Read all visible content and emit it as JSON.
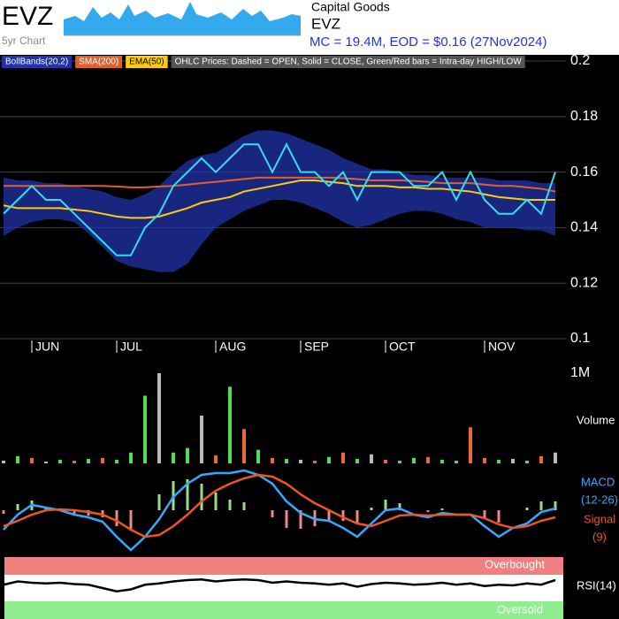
{
  "header": {
    "ticker": "EVZ",
    "thumb_label": "5yr Chart",
    "sector": "Capital Goods",
    "name": "EVZ",
    "summary": "MC = 19.4M, EOD = $0.16 (27Nov2024)"
  },
  "chart_data": [
    {
      "type": "line",
      "note": "OHLC Prices: Dashed = OPEN, Solid = CLOSE, Green/Red bars = Intra-day HIGH/LOW",
      "categories": [
        null,
        null,
        "JUN",
        null,
        null,
        null,
        null,
        null,
        "JUL",
        null,
        null,
        null,
        null,
        null,
        null,
        "AUG",
        null,
        null,
        null,
        null,
        null,
        "SEP",
        null,
        null,
        null,
        null,
        null,
        "OCT",
        null,
        null,
        null,
        null,
        null,
        null,
        "NOV",
        null,
        null,
        null,
        null,
        null
      ],
      "ylim": [
        0.1,
        0.2
      ],
      "yticks": [
        0.1,
        0.12,
        0.14,
        0.16,
        0.18,
        0.2
      ],
      "grid": true,
      "series": [
        {
          "name": "BollBands(20,2)",
          "type": "band",
          "color": "#2233aa",
          "upper": [
            0.158,
            0.157,
            0.157,
            0.156,
            0.156,
            0.155,
            0.154,
            0.153,
            0.151,
            0.15,
            0.152,
            0.155,
            0.16,
            0.164,
            0.166,
            0.167,
            0.17,
            0.173,
            0.175,
            0.175,
            0.174,
            0.172,
            0.17,
            0.168,
            0.165,
            0.163,
            0.161,
            0.161,
            0.16,
            0.159,
            0.159,
            0.158,
            0.158,
            0.158,
            0.158,
            0.157,
            0.157,
            0.157,
            0.156,
            0.156
          ],
          "lower": [
            0.137,
            0.14,
            0.142,
            0.143,
            0.143,
            0.142,
            0.138,
            0.133,
            0.128,
            0.126,
            0.125,
            0.124,
            0.124,
            0.127,
            0.134,
            0.14,
            0.143,
            0.146,
            0.148,
            0.15,
            0.15,
            0.149,
            0.147,
            0.145,
            0.142,
            0.14,
            0.141,
            0.143,
            0.145,
            0.146,
            0.146,
            0.145,
            0.143,
            0.142,
            0.14,
            0.14,
            0.14,
            0.139,
            0.139,
            0.137
          ]
        },
        {
          "name": "SMA(200)",
          "color": "#e0602a",
          "values": [
            0.155,
            0.155,
            0.155,
            0.155,
            0.155,
            0.155,
            0.155,
            0.155,
            0.1548,
            0.1545,
            0.1545,
            0.1548,
            0.155,
            0.1555,
            0.156,
            0.1565,
            0.157,
            0.1575,
            0.158,
            0.158,
            0.158,
            0.158,
            0.158,
            0.158,
            0.1578,
            0.1575,
            0.157,
            0.157,
            0.157,
            0.1568,
            0.1565,
            0.156,
            0.156,
            0.156,
            0.1555,
            0.155,
            0.155,
            0.1545,
            0.154,
            0.153
          ]
        },
        {
          "name": "EMA(50)",
          "color": "#ffcc00",
          "values": [
            0.148,
            0.147,
            0.147,
            0.147,
            0.147,
            0.1465,
            0.146,
            0.145,
            0.144,
            0.1435,
            0.1435,
            0.144,
            0.1455,
            0.147,
            0.149,
            0.15,
            0.151,
            0.153,
            0.154,
            0.155,
            0.156,
            0.157,
            0.157,
            0.1565,
            0.156,
            0.155,
            0.155,
            0.155,
            0.1545,
            0.1545,
            0.154,
            0.154,
            0.1535,
            0.153,
            0.152,
            0.151,
            0.1505,
            0.15,
            0.15,
            0.15
          ]
        },
        {
          "color": "#33ddee",
          "values": [
            0.145,
            0.15,
            0.155,
            0.15,
            0.15,
            0.145,
            0.14,
            0.135,
            0.13,
            0.13,
            0.14,
            0.145,
            0.155,
            0.16,
            0.165,
            0.16,
            0.165,
            0.17,
            0.17,
            0.16,
            0.17,
            0.16,
            0.16,
            0.155,
            0.16,
            0.15,
            0.16,
            0.16,
            0.16,
            0.155,
            0.155,
            0.16,
            0.15,
            0.16,
            0.15,
            0.145,
            0.145,
            0.15,
            0.145,
            0.16
          ]
        }
      ]
    },
    {
      "type": "bar",
      "ylabel": "Volume",
      "ylim": [
        0,
        1000000
      ],
      "yticks": [
        {
          "value": 1000000,
          "label": "1M"
        }
      ],
      "values": [
        30000,
        80000,
        60000,
        20000,
        40000,
        30000,
        50000,
        60000,
        40000,
        120000,
        750000,
        1000000,
        120000,
        170000,
        530000,
        90000,
        850000,
        380000,
        150000,
        60000,
        50000,
        40000,
        30000,
        70000,
        120000,
        50000,
        100000,
        40000,
        30000,
        60000,
        70000,
        40000,
        30000,
        400000,
        60000,
        40000,
        50000,
        30000,
        80000,
        120000
      ],
      "colors": [
        "#bbbbbb",
        "#55dd55",
        "#ee6633",
        "#bbbbbb",
        "#55dd55",
        "#ee6633",
        "#55dd55",
        "#ee6633",
        "#55dd55",
        "#55dd55",
        "#55dd55",
        "#bbbbbb",
        "#55dd55",
        "#55dd55",
        "#bbbbbb",
        "#ee6633",
        "#55dd55",
        "#ee6633",
        "#55dd55",
        "#ee6633",
        "#55dd55",
        "#bbbbbb",
        "#ee6633",
        "#55dd55",
        "#ee6633",
        "#55dd55",
        "#bbbbbb",
        "#ee6633",
        "#55dd55",
        "#55dd55",
        "#ee6633",
        "#55dd55",
        "#55dd55",
        "#ee6633",
        "#ee6633",
        "#55dd55",
        "#bbbbbb",
        "#55dd55",
        "#ee6633",
        "#bbbbbb"
      ]
    },
    {
      "type": "line",
      "ylim": [
        -0.005,
        0.005
      ],
      "series": [
        {
          "type": "bar",
          "pos_color": "#99dd88",
          "neg_color": "#ee8888",
          "values": [
            -0.0004,
            0.0007,
            0.0011,
            0.0003,
            -0.0001,
            -0.0005,
            -0.0006,
            -0.0008,
            -0.0018,
            -0.0023,
            0,
            0.0018,
            0.0033,
            0.0035,
            0.003,
            0.002,
            0.0012,
            0.0009,
            0,
            -0.0008,
            -0.002,
            -0.0021,
            -0.0018,
            -0.0012,
            -0.0012,
            -0.0015,
            0.0003,
            0.0012,
            0.0008,
            0,
            -0.0002,
            0.0002,
            0,
            0,
            -0.0009,
            -0.0014,
            0,
            0.0003,
            0.001,
            0.001
          ]
        },
        {
          "name": "MACD",
          "params": "(12-26)",
          "color": "#33aaff",
          "values": [
            -0.0022,
            -0.0005,
            0.0006,
            0.0003,
            0,
            -0.0005,
            -0.0008,
            -0.0013,
            -0.003,
            -0.0045,
            -0.003,
            -0.001,
            0.0015,
            0.003,
            0.004,
            0.0042,
            0.0042,
            0.0045,
            0.004,
            0.003,
            0.001,
            -0.0003,
            -0.001,
            -0.0012,
            -0.002,
            -0.003,
            -0.0015,
            0,
            0.0002,
            -0.0005,
            -0.0008,
            -0.0003,
            -0.0005,
            -0.0005,
            -0.0018,
            -0.003,
            -0.002,
            -0.0015,
            -0.0002,
            0.0002
          ]
        },
        {
          "name": "Signal",
          "params": "(9)",
          "color": "#ee5522",
          "values": [
            -0.0018,
            -0.0012,
            -0.0005,
            0,
            0.0001,
            0,
            -0.0002,
            -0.0005,
            -0.0012,
            -0.0022,
            -0.003,
            -0.0028,
            -0.0018,
            -0.0005,
            0.001,
            0.0022,
            0.003,
            0.0036,
            0.004,
            0.0038,
            0.003,
            0.0018,
            0.0008,
            0,
            -0.0008,
            -0.0015,
            -0.0018,
            -0.0012,
            -0.0006,
            -0.0005,
            -0.0006,
            -0.0005,
            -0.0005,
            -0.0005,
            -0.0009,
            -0.0016,
            -0.002,
            -0.0018,
            -0.0012,
            -0.0008
          ]
        }
      ]
    },
    {
      "type": "line",
      "ylim": [
        10,
        90
      ],
      "annotations": [
        "Overbought",
        "Oversold"
      ],
      "series": [
        {
          "name": "RSI(14)",
          "color": "#000000",
          "values": [
            55,
            60,
            58,
            57,
            58,
            56,
            55,
            50,
            45,
            48,
            55,
            57,
            60,
            62,
            63,
            60,
            62,
            63,
            62,
            58,
            60,
            58,
            57,
            55,
            57,
            52,
            56,
            58,
            57,
            55,
            56,
            58,
            55,
            57,
            53,
            55,
            54,
            57,
            55,
            62
          ]
        }
      ]
    }
  ]
}
